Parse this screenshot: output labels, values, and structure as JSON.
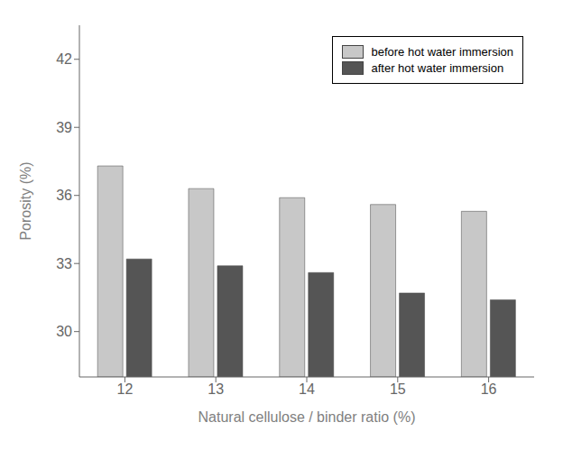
{
  "chart_data": {
    "type": "bar",
    "categories": [
      "12",
      "13",
      "14",
      "15",
      "16"
    ],
    "series": [
      {
        "name": "before hot water immersion",
        "color": "#c8c8c8",
        "values": [
          37.3,
          36.3,
          35.9,
          35.6,
          35.3
        ]
      },
      {
        "name": "after hot water immersion",
        "color": "#555555",
        "values": [
          33.2,
          32.9,
          32.6,
          31.7,
          31.4
        ]
      }
    ],
    "xlabel": "Natural cellulose / binder ratio (%)",
    "ylabel": "Porosity (%)",
    "ylim": [
      28.0,
      43.5
    ],
    "yticks": [
      30,
      33,
      36,
      39,
      42
    ],
    "grid": false,
    "legend": "upper right"
  }
}
